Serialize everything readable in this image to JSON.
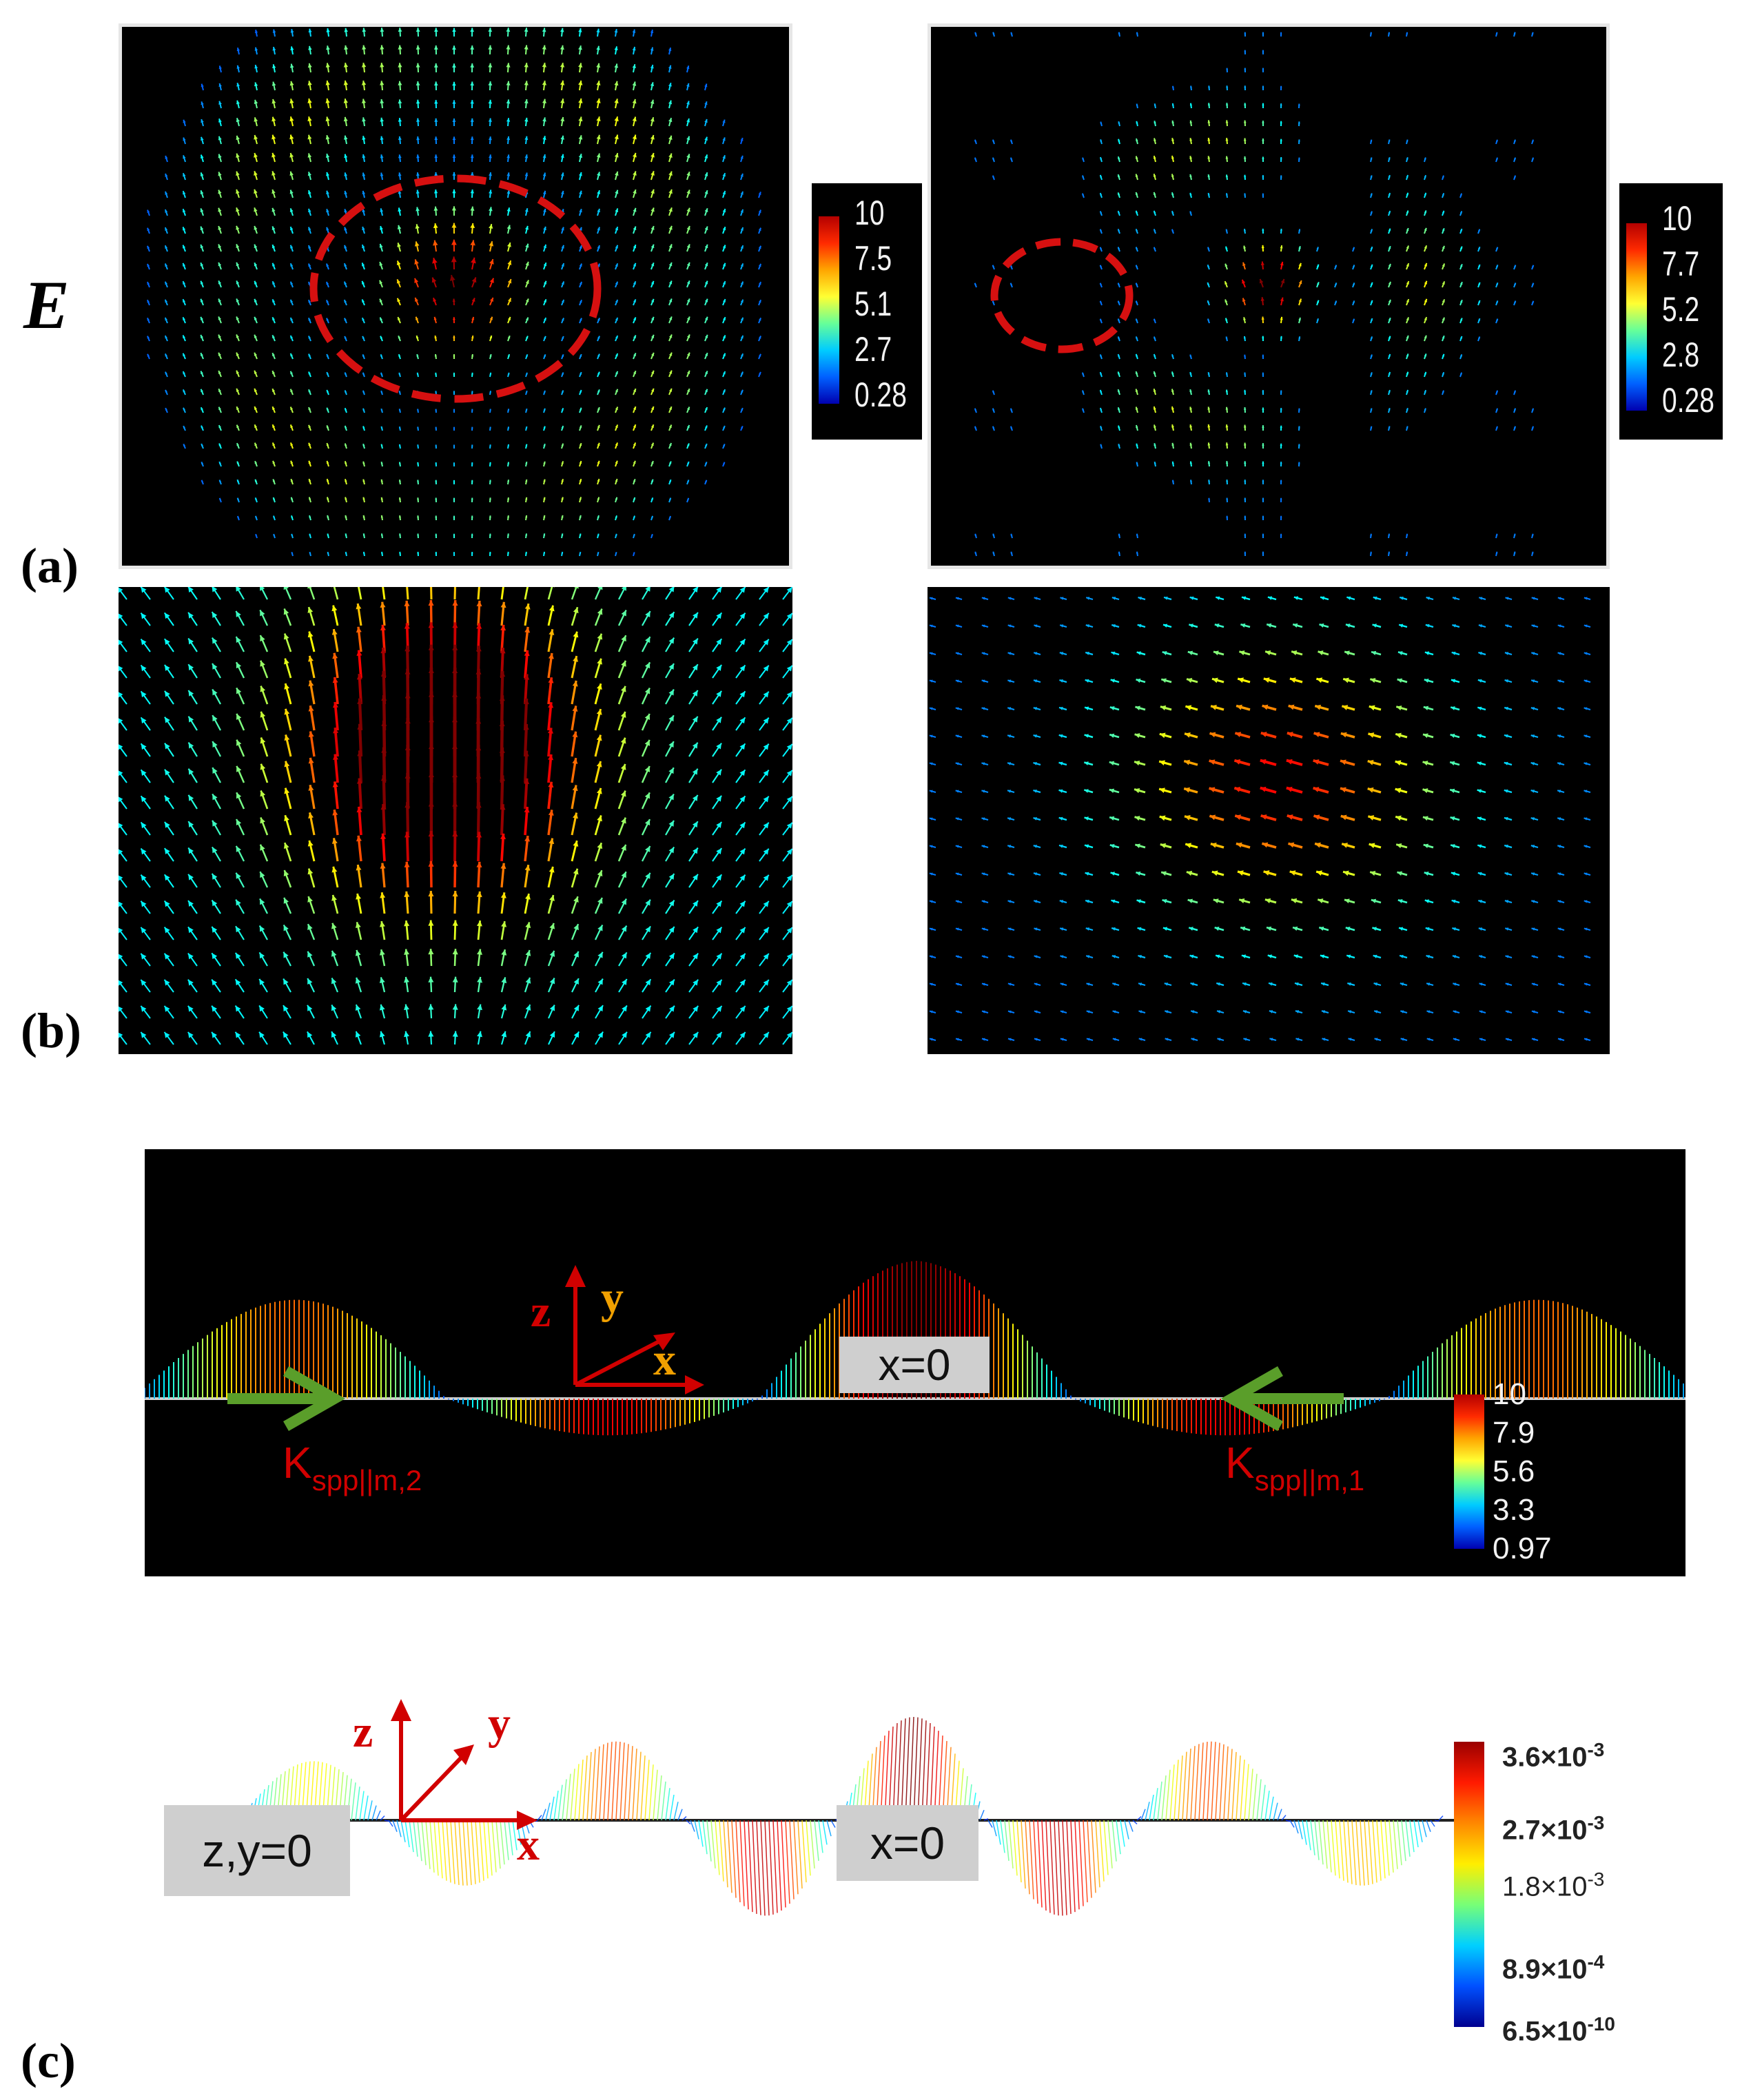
{
  "row_label": "E",
  "panel_labels": {
    "a": "(a)",
    "b": "(b)",
    "c": "(c)"
  },
  "colorbar_a_left": {
    "ticks": [
      "10",
      "7.5",
      "5.1",
      "2.7",
      "0.28"
    ]
  },
  "colorbar_a_right": {
    "ticks": [
      "10",
      "7.7",
      "5.2",
      "2.8",
      "0.28"
    ]
  },
  "panel_c_top": {
    "axes": {
      "z": "z",
      "y": "y",
      "x": "x"
    },
    "center_label": "x=0",
    "k_left": {
      "main": "K",
      "sub": "spp||m,2"
    },
    "k_right": {
      "main": "K",
      "sub": "spp||m,1"
    },
    "colorbar_ticks": [
      "10",
      "7.9",
      "5.6",
      "3.3",
      "0.97"
    ]
  },
  "panel_c_bottom": {
    "axes": {
      "z": "z",
      "y": "y",
      "x": "x"
    },
    "left_label": "z,y=0",
    "center_label": "x=0",
    "colorbar_ticks": [
      {
        "mantissa": "3.6×10",
        "exp": "-3"
      },
      {
        "mantissa": "2.7×10",
        "exp": "-3"
      },
      {
        "mantissa": "1.8×10",
        "exp": "-3"
      },
      {
        "mantissa": "8.9×10",
        "exp": "-4"
      },
      {
        "mantissa": "6.5×10",
        "exp": "-10"
      }
    ]
  },
  "colors": {
    "marker": "#d61010",
    "arrow_green": "#5a9e2a",
    "axis_red": "#d10000"
  }
}
